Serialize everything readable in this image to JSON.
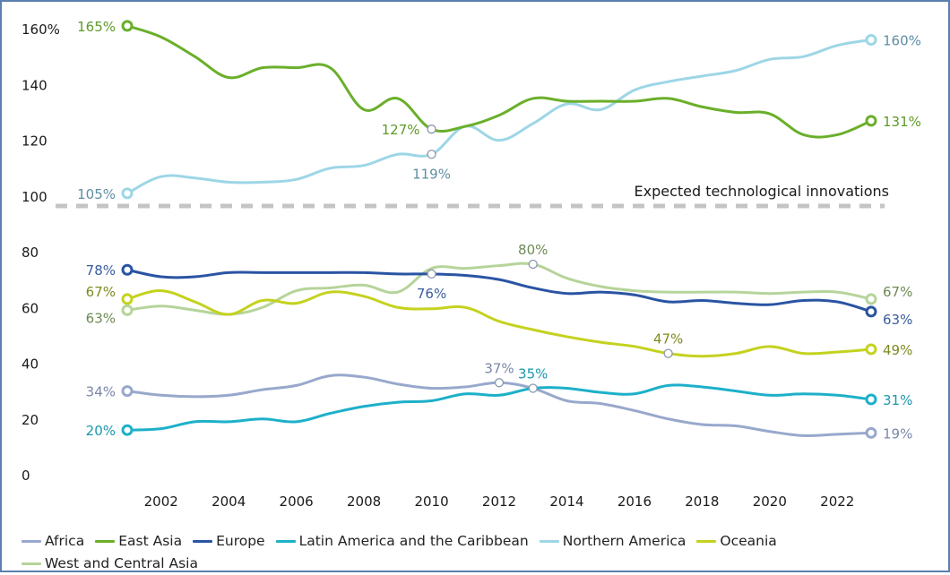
{
  "chart_data": {
    "type": "line",
    "title": "",
    "xlabel": "",
    "ylabel": "",
    "x": [
      2001,
      2002,
      2003,
      2004,
      2005,
      2006,
      2007,
      2008,
      2009,
      2010,
      2011,
      2012,
      2013,
      2014,
      2015,
      2016,
      2017,
      2018,
      2019,
      2020,
      2021,
      2022,
      2023
    ],
    "x_ticks": [
      "2002",
      "2004",
      "2006",
      "2008",
      "2010",
      "2012",
      "2014",
      "2016",
      "2018",
      "2020",
      "2022"
    ],
    "panels": [
      {
        "name": "upper",
        "ylim": [
          100,
          160
        ],
        "y_ticks": [
          "100",
          "120",
          "140",
          "160%"
        ],
        "divider_label": "Expected technological innovations",
        "series": [
          "East Asia",
          "Northern America"
        ]
      },
      {
        "name": "lower",
        "ylim": [
          0,
          80
        ],
        "y_ticks": [
          "0",
          "20",
          "40",
          "60",
          "80"
        ],
        "series": [
          "Africa",
          "Europe",
          "Latin America and the Caribbean",
          "Oceania",
          "West and Central Asia"
        ]
      }
    ],
    "series": [
      {
        "name": "Africa",
        "color": "#98a8cc",
        "label_color": "#7a87a8",
        "panel": "lower",
        "values": [
          30,
          28.5,
          28,
          28.5,
          30.5,
          32,
          35.5,
          35,
          32.5,
          31,
          31.5,
          33,
          31,
          26.5,
          25.5,
          23,
          20,
          18,
          17.5,
          15.5,
          14,
          14.5,
          15
        ],
        "annotations": [
          {
            "x": 2001,
            "text": "34%",
            "pos": "left"
          },
          {
            "x": 2012,
            "text": "37%",
            "pos": "above"
          },
          {
            "x": 2023,
            "text": "19%",
            "pos": "right"
          }
        ]
      },
      {
        "name": "East Asia",
        "color": "#6aaf2a",
        "label_color": "#5e9a28",
        "panel": "upper",
        "values": [
          161,
          157,
          150,
          142.5,
          146,
          146,
          146,
          131,
          135,
          124,
          125,
          129,
          135,
          134,
          134,
          134,
          135,
          132,
          130,
          129.5,
          122,
          122,
          127
        ],
        "annotations": [
          {
            "x": 2001,
            "text": "165%",
            "pos": "left"
          },
          {
            "x": 2010,
            "text": "127%",
            "pos": "left"
          },
          {
            "x": 2023,
            "text": "131%",
            "pos": "right"
          }
        ]
      },
      {
        "name": "Europe",
        "color": "#2a54a3",
        "label_color": "#3a5ca0",
        "panel": "lower",
        "values": [
          73.5,
          71,
          71,
          72.5,
          72.5,
          72.5,
          72.5,
          72.5,
          72,
          72,
          71.5,
          70,
          67,
          65,
          65.5,
          64.5,
          62,
          62.5,
          61.5,
          61,
          62.5,
          62,
          58.5
        ],
        "annotations": [
          {
            "x": 2001,
            "text": "78%",
            "pos": "left"
          },
          {
            "x": 2010,
            "text": "76%",
            "pos": "below"
          },
          {
            "x": 2023,
            "text": "63%",
            "pos": "right-below"
          }
        ]
      },
      {
        "name": "Latin America and the Caribbean",
        "color": "#1db0c9",
        "label_color": "#1a98ae",
        "panel": "lower",
        "values": [
          16,
          16.5,
          19,
          19,
          20,
          19,
          22,
          24.5,
          26,
          26.5,
          29,
          28.5,
          31,
          31,
          29.5,
          29,
          32,
          31.5,
          30,
          28.5,
          29,
          28.5,
          27
        ],
        "annotations": [
          {
            "x": 2001,
            "text": "20%",
            "pos": "left"
          },
          {
            "x": 2013,
            "text": "35%",
            "pos": "above"
          },
          {
            "x": 2023,
            "text": "31%",
            "pos": "right"
          }
        ]
      },
      {
        "name": "Northern America",
        "color": "#9dd6e6",
        "label_color": "#5f8ea3",
        "panel": "upper",
        "values": [
          101,
          107,
          106.5,
          105,
          105,
          106,
          110,
          111,
          115,
          115,
          125,
          120,
          126,
          133,
          131,
          138,
          141,
          143,
          145,
          149,
          150,
          154,
          156
        ],
        "annotations": [
          {
            "x": 2001,
            "text": "105%",
            "pos": "left"
          },
          {
            "x": 2010,
            "text": "119%",
            "pos": "below"
          },
          {
            "x": 2023,
            "text": "160%",
            "pos": "right"
          }
        ]
      },
      {
        "name": "Oceania",
        "color": "#c4d21f",
        "label_color": "#7e8a20",
        "panel": "lower",
        "values": [
          63,
          66,
          62,
          57.5,
          62.5,
          61.5,
          65.5,
          64,
          60,
          59.5,
          60,
          55,
          52,
          49.5,
          47.5,
          46,
          43.5,
          42.5,
          43.5,
          46,
          43.5,
          44,
          45
        ],
        "annotations": [
          {
            "x": 2001,
            "text": "67%",
            "pos": "left-above"
          },
          {
            "x": 2017,
            "text": "47%",
            "pos": "above"
          },
          {
            "x": 2023,
            "text": "49%",
            "pos": "right"
          }
        ]
      },
      {
        "name": "West and Central Asia",
        "color": "#b6d49a",
        "label_color": "#6f8a55",
        "panel": "lower",
        "values": [
          59,
          60.5,
          59,
          57.5,
          60,
          66,
          67,
          68,
          65.5,
          74,
          74,
          75,
          75.5,
          70.5,
          67.5,
          66,
          65.5,
          65.5,
          65.5,
          65,
          65.5,
          65.5,
          63
        ],
        "annotations": [
          {
            "x": 2001,
            "text": "63%",
            "pos": "left-below"
          },
          {
            "x": 2013,
            "text": "80%",
            "pos": "above"
          },
          {
            "x": 2023,
            "text": "67%",
            "pos": "right-above"
          }
        ]
      }
    ],
    "legend": [
      "Africa",
      "East Asia",
      "Europe",
      "Latin America and the Caribbean",
      "Northern America",
      "Oceania",
      "West and Central Asia"
    ],
    "legend_position": "bottom",
    "grid": false
  }
}
